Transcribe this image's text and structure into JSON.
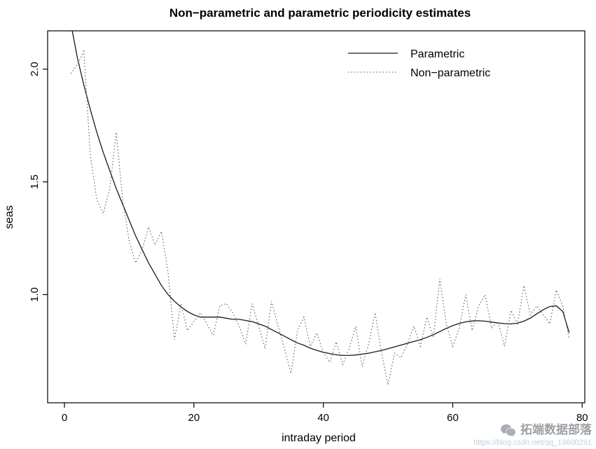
{
  "colors": {
    "background": "#ffffff",
    "parametric_line": "#1a1a1a",
    "nonparametric_line": "#5a5a5a",
    "watermark_text": "#8d9196",
    "watermark_url": "#b3cbe4"
  },
  "watermark": {
    "icon": "wechat-icon",
    "brand": "拓端数据部落",
    "url": "https://blog.csdn.net/qq_19600291"
  },
  "chart_data": {
    "type": "line",
    "title": "Non−parametric and parametric periodicity estimates",
    "xlabel": "intraday period",
    "ylabel": "seas",
    "xlim": [
      -2.6,
      80.4
    ],
    "ylim": [
      0.52,
      2.17
    ],
    "xticks": [
      0,
      20,
      40,
      60,
      80
    ],
    "xtick_labels": [
      "0",
      "20",
      "40",
      "60",
      "80"
    ],
    "yticks": [
      1.0,
      1.5,
      2.0
    ],
    "ytick_labels": [
      "1.0",
      "1.5",
      "2.0"
    ],
    "grid": false,
    "legend": {
      "position": "top-center-right",
      "entries": [
        {
          "label": "Parametric",
          "style": "solid"
        },
        {
          "label": "Non−parametric",
          "style": "dotted"
        }
      ]
    },
    "x": [
      1,
      2,
      3,
      4,
      5,
      6,
      7,
      8,
      9,
      10,
      11,
      12,
      13,
      14,
      15,
      16,
      17,
      18,
      19,
      20,
      21,
      22,
      23,
      24,
      25,
      26,
      27,
      28,
      29,
      30,
      31,
      32,
      33,
      34,
      35,
      36,
      37,
      38,
      39,
      40,
      41,
      42,
      43,
      44,
      45,
      46,
      47,
      48,
      49,
      50,
      51,
      52,
      53,
      54,
      55,
      56,
      57,
      58,
      59,
      60,
      61,
      62,
      63,
      64,
      65,
      66,
      67,
      68,
      69,
      70,
      71,
      72,
      73,
      74,
      75,
      76,
      77,
      78
    ],
    "series": [
      {
        "name": "Parametric",
        "style": "solid",
        "values": [
          2.2,
          2.05,
          1.93,
          1.82,
          1.72,
          1.63,
          1.55,
          1.47,
          1.4,
          1.33,
          1.26,
          1.2,
          1.14,
          1.09,
          1.04,
          1.0,
          0.97,
          0.945,
          0.925,
          0.91,
          0.9,
          0.9,
          0.9,
          0.9,
          0.895,
          0.89,
          0.89,
          0.885,
          0.88,
          0.87,
          0.86,
          0.845,
          0.83,
          0.815,
          0.8,
          0.785,
          0.775,
          0.762,
          0.752,
          0.744,
          0.738,
          0.733,
          0.73,
          0.73,
          0.732,
          0.736,
          0.74,
          0.746,
          0.752,
          0.76,
          0.768,
          0.776,
          0.784,
          0.792,
          0.8,
          0.81,
          0.822,
          0.836,
          0.85,
          0.862,
          0.872,
          0.879,
          0.883,
          0.884,
          0.882,
          0.878,
          0.874,
          0.871,
          0.87,
          0.873,
          0.882,
          0.896,
          0.915,
          0.933,
          0.947,
          0.95,
          0.925,
          0.83
        ]
      },
      {
        "name": "Non−parametric",
        "style": "dotted",
        "values": [
          1.98,
          2.02,
          2.08,
          1.62,
          1.42,
          1.36,
          1.47,
          1.72,
          1.42,
          1.24,
          1.14,
          1.2,
          1.3,
          1.22,
          1.28,
          1.1,
          0.8,
          0.96,
          0.84,
          0.88,
          0.92,
          0.87,
          0.82,
          0.95,
          0.96,
          0.92,
          0.86,
          0.78,
          0.96,
          0.86,
          0.76,
          0.97,
          0.86,
          0.76,
          0.65,
          0.84,
          0.9,
          0.77,
          0.83,
          0.74,
          0.7,
          0.79,
          0.69,
          0.76,
          0.86,
          0.68,
          0.78,
          0.92,
          0.74,
          0.6,
          0.74,
          0.72,
          0.78,
          0.86,
          0.77,
          0.9,
          0.81,
          1.07,
          0.87,
          0.77,
          0.85,
          1.0,
          0.84,
          0.95,
          1.0,
          0.85,
          0.88,
          0.77,
          0.93,
          0.87,
          1.04,
          0.91,
          0.95,
          0.91,
          0.87,
          1.02,
          0.95,
          0.8
        ]
      }
    ]
  }
}
